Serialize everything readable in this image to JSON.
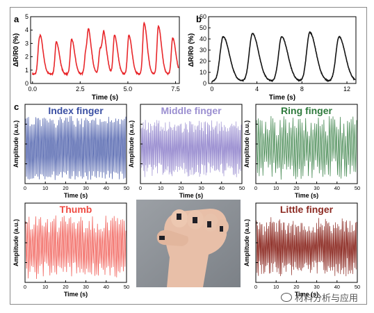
{
  "panels": {
    "a": "a",
    "b": "b",
    "c": "c"
  },
  "watermark": "材料分析与应用",
  "colors": {
    "a": "#e8262a",
    "b": "#111111",
    "index": "#3a4fa3",
    "middle": "#9b8fd1",
    "ring": "#2e7a3c",
    "thumb": "#ef4a42",
    "little": "#8c2a22",
    "photo_bg": "#8f949a"
  },
  "chart_data": [
    {
      "id": "a",
      "type": "line",
      "xlabel": "Time (s)",
      "ylabel": "ΔR/R0 (%)",
      "xlim": [
        -0.1,
        7.7
      ],
      "ylim": [
        0,
        5
      ],
      "xticks": [
        "0.0",
        "2.5",
        "5.0",
        "7.5"
      ],
      "yticks": [
        "0",
        "1",
        "2",
        "3",
        "4",
        "5"
      ],
      "peaks": [
        {
          "t": 0.35,
          "v": 3.0
        },
        {
          "t": 0.45,
          "v": 1.6
        },
        {
          "t": 1.25,
          "v": 3.1
        },
        {
          "t": 2.05,
          "v": 3.3
        },
        {
          "t": 2.8,
          "v": 2.4
        },
        {
          "t": 2.95,
          "v": 3.0
        },
        {
          "t": 3.55,
          "v": 2.6
        },
        {
          "t": 3.75,
          "v": 3.0
        },
        {
          "t": 4.3,
          "v": 3.6
        },
        {
          "t": 5.05,
          "v": 3.6
        },
        {
          "t": 5.85,
          "v": 4.5
        },
        {
          "t": 6.6,
          "v": 4.3
        },
        {
          "t": 7.35,
          "v": 3.4
        }
      ],
      "baseline": 0.7
    },
    {
      "id": "b",
      "type": "line",
      "xlabel": "Time (s)",
      "ylabel": "ΔR/R0 (%)",
      "xlim": [
        -0.3,
        12.8
      ],
      "ylim": [
        0,
        60
      ],
      "xticks": [
        "0",
        "4",
        "8",
        "12"
      ],
      "yticks": [
        "0",
        "10",
        "20",
        "30",
        "40",
        "50",
        "60"
      ],
      "peaks": [
        {
          "t": 1.0,
          "v": 42
        },
        {
          "t": 3.6,
          "v": 45
        },
        {
          "t": 6.2,
          "v": 42
        },
        {
          "t": 8.7,
          "v": 46
        },
        {
          "t": 11.3,
          "v": 42
        }
      ],
      "baseline": 2
    },
    {
      "id": "index",
      "title": "Index finger",
      "type": "line",
      "xlabel": "Time (s)",
      "ylabel": "Amplitude (a.u.)",
      "xlim": [
        0,
        50
      ],
      "xticks": [
        "0",
        "10",
        "20",
        "30",
        "40",
        "50"
      ]
    },
    {
      "id": "middle",
      "title": "Middle finger",
      "type": "line",
      "xlabel": "Time (s)",
      "ylabel": "Amplitude (a.u.)",
      "xlim": [
        0,
        50
      ],
      "xticks": [
        "0",
        "10",
        "20",
        "30",
        "40",
        "50"
      ]
    },
    {
      "id": "ring",
      "title": "Ring finger",
      "type": "line",
      "xlabel": "Time (s)",
      "ylabel": "Amplitude (a.u.)",
      "xlim": [
        0,
        50
      ],
      "xticks": [
        "0",
        "10",
        "20",
        "30",
        "40",
        "50"
      ]
    },
    {
      "id": "thumb",
      "title": "Thumb",
      "type": "line",
      "xlabel": "Time (s)",
      "ylabel": "Amplitude (a.u.)",
      "xlim": [
        0,
        50
      ],
      "xticks": [
        "0",
        "10",
        "20",
        "30",
        "40",
        "50"
      ]
    },
    {
      "id": "little",
      "title": "Little finger",
      "type": "line",
      "xlabel": "Time (s)",
      "ylabel": "Amplitude (a.u.)",
      "xlim": [
        0,
        50
      ],
      "xticks": [
        "0",
        "10",
        "20",
        "30",
        "40",
        "50"
      ]
    }
  ]
}
